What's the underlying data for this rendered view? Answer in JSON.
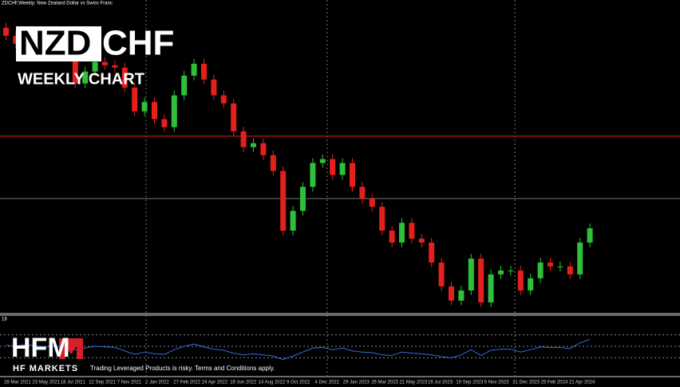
{
  "chart_data": {
    "type": "candlestick",
    "header": "ZDCHF,Weekly:  New Zealand Dollar vs Swiss Franc",
    "title_box": "NZD",
    "title_rest": "CHF",
    "subtitle": "WEEKLY CHART",
    "open": [
      0.6652,
      0.6615,
      0.6578,
      0.6604,
      0.6589,
      0.6567,
      0.6552,
      0.6523,
      0.6395,
      0.645,
      0.6494,
      0.6479,
      0.6468,
      0.6376,
      0.6266,
      0.631,
      0.623,
      0.6193,
      0.634,
      0.6431,
      0.6486,
      0.6413,
      0.634,
      0.6303,
      0.6174,
      0.6101,
      0.6119,
      0.6064,
      0.5991,
      0.5716,
      0.5807,
      0.5918,
      0.6028,
      0.6046,
      0.5973,
      0.6028,
      0.5918,
      0.5863,
      0.5826,
      0.5716,
      0.5661,
      0.5752,
      0.5679,
      0.5661,
      0.5569,
      0.5459,
      0.5393,
      0.544,
      0.5587,
      0.5385,
      0.5514,
      0.5532,
      0.5532,
      0.544,
      0.5496,
      0.5569,
      0.5551,
      0.5551,
      0.5514,
      0.5661
    ],
    "high": [
      0.6674,
      0.6637,
      0.6626,
      0.6626,
      0.6611,
      0.6589,
      0.6574,
      0.6545,
      0.6472,
      0.6516,
      0.6516,
      0.6501,
      0.649,
      0.6398,
      0.6332,
      0.6332,
      0.6252,
      0.6362,
      0.6453,
      0.6508,
      0.6508,
      0.6435,
      0.6362,
      0.6325,
      0.6196,
      0.6141,
      0.6141,
      0.6086,
      0.6013,
      0.5829,
      0.594,
      0.605,
      0.6068,
      0.6068,
      0.605,
      0.605,
      0.594,
      0.5885,
      0.5848,
      0.5738,
      0.5774,
      0.5774,
      0.5701,
      0.5683,
      0.5591,
      0.5481,
      0.5462,
      0.5609,
      0.5609,
      0.5536,
      0.5554,
      0.5554,
      0.5554,
      0.5518,
      0.5591,
      0.5591,
      0.5573,
      0.5573,
      0.5683,
      0.5749
    ],
    "low": [
      0.6593,
      0.6556,
      0.6556,
      0.6567,
      0.6545,
      0.653,
      0.6501,
      0.6373,
      0.6373,
      0.6428,
      0.6457,
      0.6446,
      0.6354,
      0.6244,
      0.6244,
      0.6208,
      0.6171,
      0.6171,
      0.6318,
      0.6409,
      0.6391,
      0.6318,
      0.6281,
      0.6152,
      0.6079,
      0.6079,
      0.6042,
      0.5969,
      0.5694,
      0.5694,
      0.5785,
      0.5896,
      0.6006,
      0.5951,
      0.5951,
      0.5896,
      0.5841,
      0.5804,
      0.5694,
      0.5639,
      0.5639,
      0.5657,
      0.5639,
      0.5547,
      0.5437,
      0.5371,
      0.5371,
      0.5418,
      0.5363,
      0.5363,
      0.5492,
      0.551,
      0.5418,
      0.5418,
      0.5474,
      0.5529,
      0.5529,
      0.5492,
      0.5492,
      0.5639
    ],
    "close": [
      0.6615,
      0.6578,
      0.6604,
      0.6589,
      0.6567,
      0.6552,
      0.6523,
      0.6395,
      0.645,
      0.6494,
      0.6479,
      0.6468,
      0.6376,
      0.6266,
      0.631,
      0.623,
      0.6193,
      0.634,
      0.6431,
      0.6486,
      0.6413,
      0.634,
      0.6303,
      0.6174,
      0.6101,
      0.6119,
      0.6064,
      0.5991,
      0.5716,
      0.5807,
      0.5918,
      0.6028,
      0.6046,
      0.5973,
      0.6028,
      0.5918,
      0.5863,
      0.5826,
      0.5716,
      0.5661,
      0.5752,
      0.5679,
      0.5661,
      0.5569,
      0.5459,
      0.5393,
      0.544,
      0.5587,
      0.5385,
      0.5514,
      0.5532,
      0.5532,
      0.544,
      0.5496,
      0.5569,
      0.5551,
      0.5551,
      0.5514,
      0.5661,
      0.5727
    ],
    "up_color": "#2fbf3a",
    "down_color": "#e3201c",
    "ylim": [
      0.5337,
      0.678
    ],
    "hlines": [
      {
        "value": 0.6152,
        "color": "#d91c1c"
      },
      {
        "value": 0.5864,
        "color": "#777777"
      }
    ],
    "date_labels": [
      "28 Mar 2021",
      "23 May 2021",
      "18 Jul 2021",
      "12 Sep 2021",
      "7 Nov 2021",
      "2 Jan 2022",
      "27 Feb 2022",
      "24 Apr 2022",
      "19 Jun 2022",
      "14 Aug 2022",
      "9 Oct 2022",
      "4 Dec 2022",
      "29 Jan 2023",
      "26 Mar 2023",
      "21 May 2023",
      "16 Jul 2023",
      "10 Sep 2023",
      "5 Nov 2023",
      "31 Dec 2023",
      "25 Feb 2024",
      "21 Apr 2024"
    ],
    "indicator": {
      "label": "18",
      "color": "#2f6fe0",
      "ylim": [
        0,
        100
      ],
      "levels": [
        70,
        50,
        30
      ],
      "values": [
        52,
        50,
        53,
        51,
        49,
        50,
        48,
        44,
        47,
        50,
        49,
        48,
        42,
        36,
        40,
        37,
        36,
        44,
        50,
        54,
        49,
        45,
        43,
        38,
        35,
        37,
        35,
        33,
        27,
        33,
        40,
        47,
        48,
        44,
        47,
        42,
        40,
        39,
        35,
        34,
        40,
        38,
        37,
        35,
        32,
        30,
        35,
        44,
        34,
        43,
        45,
        45,
        40,
        44,
        49,
        48,
        48,
        46,
        56,
        62
      ]
    },
    "logo": "HFM",
    "logo_sub": "HF MARKETS",
    "disclaimer": "Trading Leveraged Products is risky. Terms and Conditions apply."
  }
}
